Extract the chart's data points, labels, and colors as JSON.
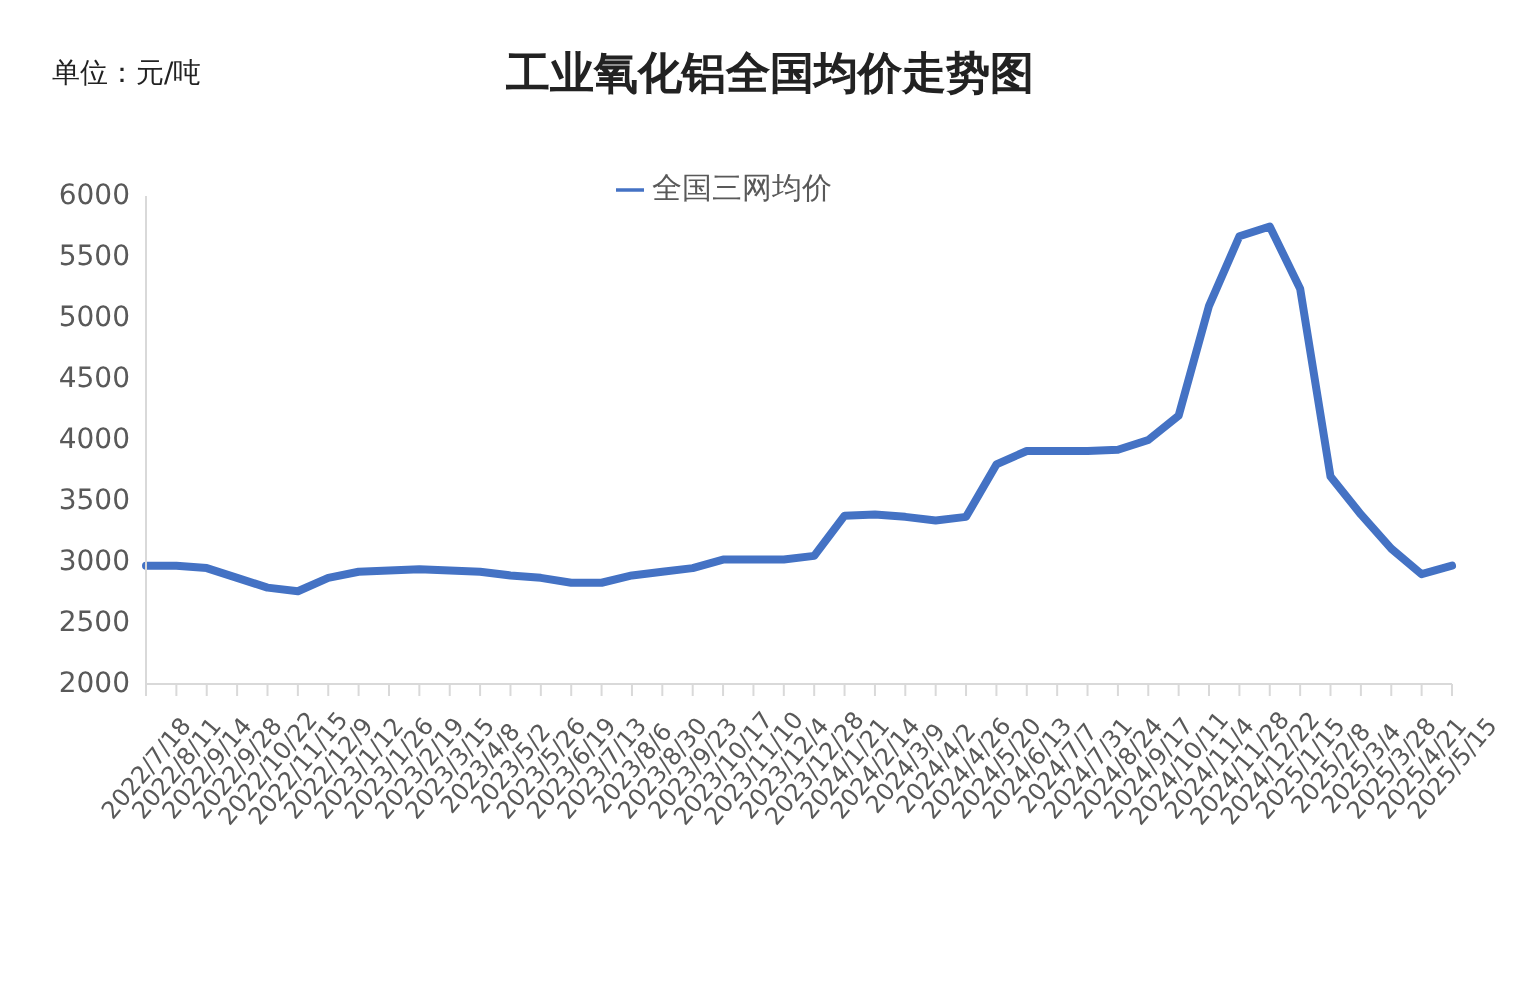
{
  "chart_data": {
    "type": "line",
    "title": "工业氧化铝全国均价走势图",
    "ylabel": "单位：元/吨",
    "categories": [
      "2022/7/18",
      "2022/8/11",
      "2022/9/14",
      "2022/9/28",
      "2022/10/22",
      "2022/11/15",
      "2022/12/9",
      "2023/1/12",
      "2023/1/26",
      "2023/2/19",
      "2023/3/15",
      "2023/4/8",
      "2023/5/2",
      "2023/5/26",
      "2023/6/19",
      "2023/7/13",
      "2023/8/6",
      "2023/8/30",
      "2023/9/23",
      "2023/10/17",
      "2023/11/10",
      "2023/12/4",
      "2023/12/28",
      "2024/1/21",
      "2024/2/14",
      "2024/3/9",
      "2024/4/2",
      "2024/4/26",
      "2024/5/20",
      "2024/6/13",
      "2024/7/7",
      "2024/7/31",
      "2024/8/24",
      "2024/9/17",
      "2024/10/11",
      "2024/11/4",
      "2024/11/28",
      "2024/12/22",
      "2025/1/15",
      "2025/2/8",
      "2025/3/4",
      "2025/3/28",
      "2025/4/21",
      "2025/5/15"
    ],
    "series": [
      {
        "name": "全国三网均价",
        "color": "#4472c4",
        "values": [
          2970,
          2970,
          2950,
          2870,
          2790,
          2760,
          2870,
          2920,
          2930,
          2940,
          2930,
          2920,
          2890,
          2870,
          2830,
          2830,
          2890,
          2920,
          2950,
          3020,
          3020,
          3020,
          3050,
          3380,
          3390,
          3370,
          3340,
          3370,
          3800,
          3910,
          3910,
          3910,
          3920,
          4000,
          4200,
          5100,
          5670,
          5750,
          5240,
          3700,
          3390,
          3110,
          2900,
          2970
        ]
      }
    ],
    "ylim": [
      2000,
      6000
    ],
    "yticks": [
      2000,
      2500,
      3000,
      3500,
      4000,
      4500,
      5000,
      5500,
      6000
    ],
    "legend": "top",
    "marker": "none",
    "line_style": "solid"
  }
}
